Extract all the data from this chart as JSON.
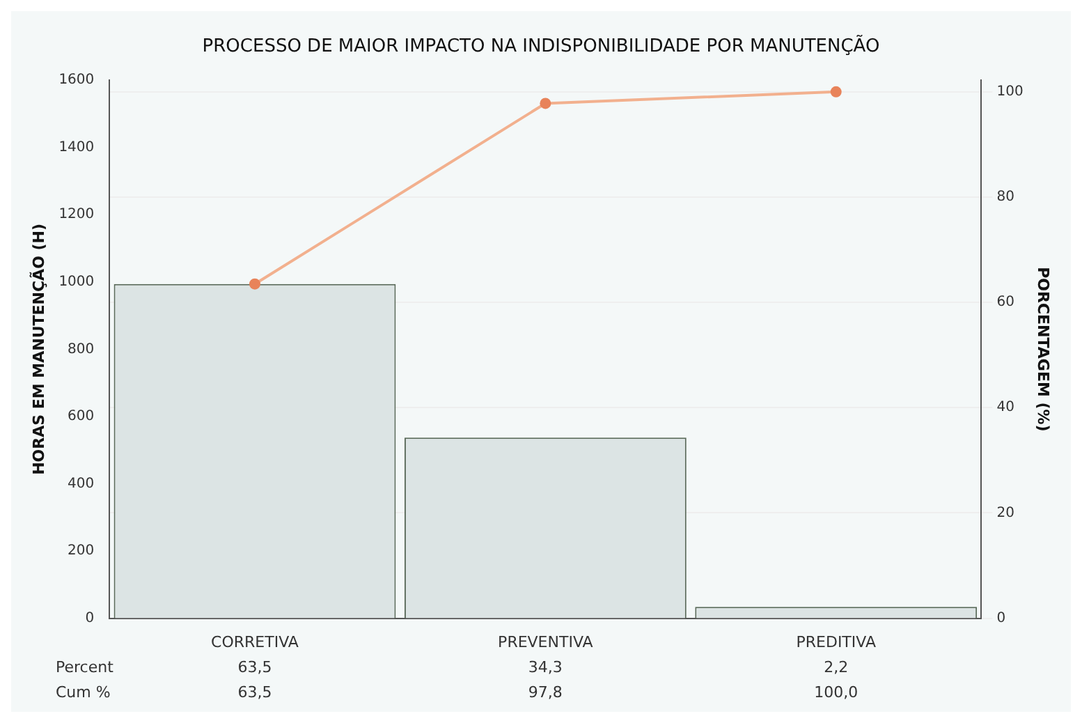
{
  "chart_data": {
    "type": "bar",
    "title": "PROCESSO DE MAIOR IMPACTO NA INDISPONIBILIDADE POR MANUTENÇÃO",
    "ylabel": "HORAS EM MANUTENÇÃO (H)",
    "y2label": "PORCENTAGEM (%)",
    "categories": [
      "CORRETIVA",
      "PREVENTIVA",
      "PREDITIVA"
    ],
    "series": [
      {
        "color": "#dce4e4",
        "values": [
          994,
          537,
          34
        ]
      },
      {
        "type": "line",
        "axis": "y2",
        "color": "#f2b08e",
        "values": [
          63.5,
          97.8,
          100
        ],
        "value_labels": [
          "63,5",
          "97,8",
          "100,0"
        ]
      }
    ],
    "annotations": [
      "Percent",
      "63,5",
      "34,3",
      "2,2",
      "Cum %"
    ],
    "ylim": [
      0,
      1600
    ],
    "yticks": [
      0,
      200,
      400,
      600,
      800,
      1000,
      1200,
      1400,
      1600
    ],
    "y2lim": [
      0,
      102.2
    ],
    "y2ticks": [
      0,
      20,
      40,
      60,
      80,
      100
    ],
    "grid": "y2",
    "legend": false,
    "marker": "circle"
  }
}
